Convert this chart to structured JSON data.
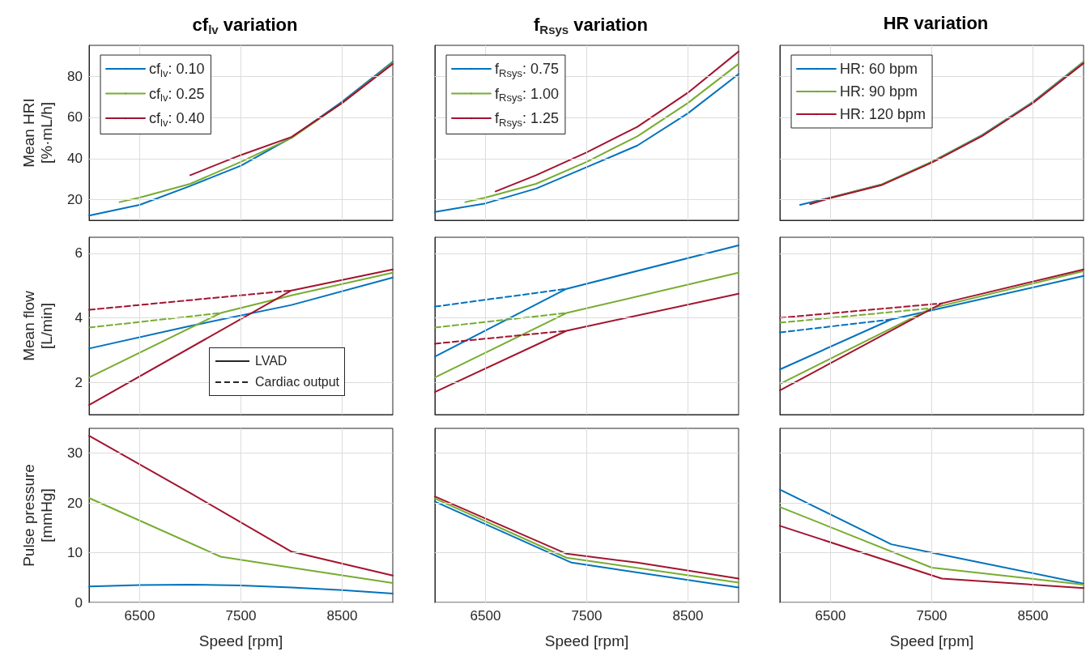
{
  "chart_data": [
    {
      "type": "line",
      "title": "cf$_{lv}$ variation",
      "ylabel": "Mean HRI\n[%·mL/h]",
      "xlim": [
        6000,
        9000
      ],
      "xticks": [
        6500,
        7500,
        8500
      ],
      "ylim": [
        10,
        95
      ],
      "yticks": [
        20,
        40,
        60,
        80
      ],
      "grid": true,
      "legend": "top left",
      "tick_labels": "y",
      "series": [
        {
          "name": "cf$_{lv}$: 0.10",
          "color": "#0072bd",
          "x": [
            6000,
            6500,
            7000,
            7500,
            8000,
            8500,
            9000
          ],
          "values": [
            12.3,
            17.5,
            26.7,
            36.5,
            50.2,
            67.6,
            87
          ]
        },
        {
          "name": "cf$_{lv}$: 0.25",
          "color": "#77ac30",
          "x": [
            6300,
            6500,
            7000,
            7500,
            8000,
            8500,
            9000
          ],
          "values": [
            18.8,
            21,
            27.7,
            38.4,
            50,
            67,
            86.5
          ]
        },
        {
          "name": "cf$_{lv}$: 0.40",
          "color": "#a2142f",
          "x": [
            7000,
            7500,
            8000,
            8500,
            9000
          ],
          "values": [
            31.9,
            41.7,
            50.5,
            67,
            86
          ]
        }
      ]
    },
    {
      "type": "line",
      "title": "f$_{Rsys}$ variation",
      "xlim": [
        6000,
        9000
      ],
      "xticks": [
        6500,
        7500,
        8500
      ],
      "ylim": [
        10,
        95
      ],
      "yticks": [
        20,
        40,
        60,
        80
      ],
      "grid": true,
      "legend": "top left",
      "tick_labels": false,
      "series": [
        {
          "name": "f$_{Rsys}$: 0.75",
          "color": "#0072bd",
          "x": [
            6000,
            6500,
            7000,
            7500,
            8000,
            8500,
            9000
          ],
          "values": [
            14,
            18.2,
            25.4,
            35.8,
            46.3,
            62,
            81
          ]
        },
        {
          "name": "f$_{Rsys}$: 1.00",
          "color": "#77ac30",
          "x": [
            6300,
            6500,
            7000,
            7500,
            8000,
            8500,
            9000
          ],
          "values": [
            18.8,
            21,
            27.7,
            38.4,
            50.8,
            67,
            86
          ]
        },
        {
          "name": "f$_{Rsys}$: 1.25",
          "color": "#a2142f",
          "x": [
            6600,
            7000,
            7500,
            8000,
            8500,
            9000
          ],
          "values": [
            24,
            31.9,
            43,
            55.4,
            72,
            92
          ]
        }
      ]
    },
    {
      "type": "line",
      "title": "HR variation",
      "xlim": [
        6000,
        9000
      ],
      "xticks": [
        6500,
        7500,
        8500
      ],
      "ylim": [
        10,
        95
      ],
      "yticks": [
        20,
        40,
        60,
        80
      ],
      "grid": true,
      "legend": "top left",
      "tick_labels": false,
      "series": [
        {
          "name": "HR: 60 bpm",
          "color": "#0072bd",
          "x": [
            6200,
            6500,
            7000,
            7500,
            8000,
            8500,
            9000
          ],
          "values": [
            17.5,
            21,
            27.3,
            38.4,
            51.5,
            67.5,
            87
          ]
        },
        {
          "name": "HR: 90 bpm",
          "color": "#77ac30",
          "x": [
            6300,
            6500,
            7000,
            7500,
            8000,
            8500,
            9000
          ],
          "values": [
            18,
            21,
            27.3,
            38.4,
            51.3,
            67.3,
            86.8
          ]
        },
        {
          "name": "HR: 120 bpm",
          "color": "#a2142f",
          "x": [
            6300,
            6500,
            7000,
            7500,
            8000,
            8500,
            9000
          ],
          "values": [
            17.9,
            20.8,
            27,
            38,
            51,
            67,
            86.3
          ]
        }
      ]
    },
    {
      "type": "line",
      "ylabel": "Mean flow\n[L/min]",
      "xlim": [
        6000,
        9000
      ],
      "xticks": [
        6500,
        7500,
        8500
      ],
      "ylim": [
        1,
        6.5
      ],
      "yticks": [
        2,
        4,
        6
      ],
      "grid": true,
      "tick_labels": "y",
      "annotations": [
        "LVAD",
        "Cardiac output"
      ],
      "series": [
        {
          "color": "#0072bd",
          "x": [
            6000,
            7000,
            8000,
            9000
          ],
          "values": [
            3.05,
            3.75,
            4.4,
            5.25
          ]
        },
        {
          "color": "#77ac30",
          "x": [
            6000,
            7300,
            8000,
            9000
          ],
          "values": [
            2.15,
            4.15,
            4.7,
            5.4
          ]
        },
        {
          "color": "#a2142f",
          "x": [
            6000,
            8000,
            9000
          ],
          "values": [
            1.3,
            4.85,
            5.5
          ]
        },
        {
          "color": "#77ac30",
          "line_style": "dashed",
          "x": [
            6000,
            7300
          ],
          "values": [
            3.7,
            4.15
          ]
        },
        {
          "color": "#a2142f",
          "line_style": "dashed",
          "x": [
            6000,
            8000
          ],
          "values": [
            4.25,
            4.85
          ]
        }
      ]
    },
    {
      "type": "line",
      "xlim": [
        6000,
        9000
      ],
      "xticks": [
        6500,
        7500,
        8500
      ],
      "ylim": [
        1,
        6.5
      ],
      "yticks": [
        2,
        4,
        6
      ],
      "grid": true,
      "tick_labels": false,
      "series": [
        {
          "color": "#0072bd",
          "x": [
            6000,
            7300,
            9000
          ],
          "values": [
            2.8,
            4.9,
            6.25
          ]
        },
        {
          "color": "#77ac30",
          "x": [
            6000,
            7300,
            9000
          ],
          "values": [
            2.15,
            4.15,
            5.4
          ]
        },
        {
          "color": "#a2142f",
          "x": [
            6000,
            7300,
            9000
          ],
          "values": [
            1.7,
            3.6,
            4.75
          ]
        },
        {
          "color": "#0072bd",
          "line_style": "dashed",
          "x": [
            6000,
            7300
          ],
          "values": [
            4.35,
            4.9
          ]
        },
        {
          "color": "#77ac30",
          "line_style": "dashed",
          "x": [
            6000,
            7300
          ],
          "values": [
            3.7,
            4.15
          ]
        },
        {
          "color": "#a2142f",
          "line_style": "dashed",
          "x": [
            6000,
            7300
          ],
          "values": [
            3.2,
            3.6
          ]
        }
      ]
    },
    {
      "type": "line",
      "xlim": [
        6000,
        9000
      ],
      "xticks": [
        6500,
        7500,
        8500
      ],
      "ylim": [
        1,
        6.5
      ],
      "yticks": [
        2,
        4,
        6
      ],
      "grid": true,
      "tick_labels": false,
      "series": [
        {
          "color": "#0072bd",
          "x": [
            6000,
            7100,
            9000
          ],
          "values": [
            2.4,
            3.95,
            5.3
          ]
        },
        {
          "color": "#77ac30",
          "x": [
            6000,
            7500,
            9000
          ],
          "values": [
            1.95,
            4.3,
            5.45
          ]
        },
        {
          "color": "#a2142f",
          "x": [
            6000,
            7600,
            9000
          ],
          "values": [
            1.75,
            4.45,
            5.5
          ]
        },
        {
          "color": "#0072bd",
          "line_style": "dashed",
          "x": [
            6000,
            7100
          ],
          "values": [
            3.55,
            3.95
          ]
        },
        {
          "color": "#77ac30",
          "line_style": "dashed",
          "x": [
            6000,
            7500
          ],
          "values": [
            3.85,
            4.3
          ]
        },
        {
          "color": "#a2142f",
          "line_style": "dashed",
          "x": [
            6000,
            7600
          ],
          "values": [
            4.0,
            4.45
          ]
        }
      ]
    },
    {
      "type": "line",
      "xlabel": "Speed [rpm]",
      "ylabel": "Pulse pressure\n[mmHg]",
      "xlim": [
        6000,
        9000
      ],
      "xticks": [
        6500,
        7500,
        8500
      ],
      "ylim": [
        0,
        35
      ],
      "yticks": [
        0,
        10,
        20,
        30
      ],
      "grid": true,
      "series": [
        {
          "color": "#0072bd",
          "x": [
            6000,
            6500,
            7000,
            7500,
            8000,
            8500,
            9000
          ],
          "values": [
            3.2,
            3.5,
            3.6,
            3.4,
            3.0,
            2.5,
            1.8
          ]
        },
        {
          "color": "#77ac30",
          "x": [
            6000,
            7300,
            8000,
            9000
          ],
          "values": [
            21,
            9.2,
            7,
            3.9
          ]
        },
        {
          "color": "#a2142f",
          "x": [
            6000,
            7000,
            8000,
            8500,
            9000
          ],
          "values": [
            33.5,
            22,
            10.2,
            7.8,
            5.4
          ]
        }
      ]
    },
    {
      "type": "line",
      "xlabel": "Speed [rpm]",
      "xlim": [
        6000,
        9000
      ],
      "xticks": [
        6500,
        7500,
        8500
      ],
      "ylim": [
        0,
        35
      ],
      "yticks": [
        0,
        10,
        20,
        30
      ],
      "grid": true,
      "tick_labels": "x",
      "series": [
        {
          "color": "#0072bd",
          "x": [
            6000,
            7350,
            9000
          ],
          "values": [
            20.3,
            8,
            3
          ]
        },
        {
          "color": "#77ac30",
          "x": [
            6000,
            7300,
            9000
          ],
          "values": [
            20.9,
            9,
            4
          ]
        },
        {
          "color": "#a2142f",
          "x": [
            6000,
            7300,
            8000,
            9000
          ],
          "values": [
            21.3,
            9.8,
            8,
            4.8
          ]
        }
      ]
    },
    {
      "type": "line",
      "xlabel": "Speed [rpm]",
      "xlim": [
        6000,
        9000
      ],
      "xticks": [
        6500,
        7500,
        8500
      ],
      "ylim": [
        0,
        35
      ],
      "yticks": [
        0,
        10,
        20,
        30
      ],
      "grid": true,
      "tick_labels": "x",
      "series": [
        {
          "color": "#0072bd",
          "x": [
            6000,
            7100,
            7500,
            9000
          ],
          "values": [
            22.7,
            11.7,
            10,
            3.8
          ]
        },
        {
          "color": "#77ac30",
          "x": [
            6000,
            7500,
            9000
          ],
          "values": [
            19.2,
            7,
            3.6
          ]
        },
        {
          "color": "#a2142f",
          "x": [
            6000,
            7600,
            9000
          ],
          "values": [
            15.4,
            4.8,
            2.9
          ]
        }
      ]
    }
  ]
}
